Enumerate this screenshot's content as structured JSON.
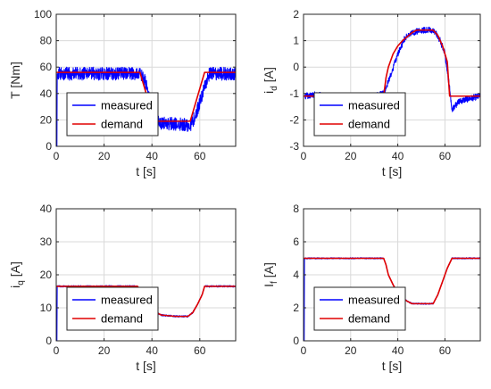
{
  "colors": {
    "measured": "#0000ff",
    "demand": "#e00000",
    "grid": "#d9d9d9",
    "axis": "#262626"
  },
  "chart_data": [
    {
      "type": "line",
      "xlabel": "t [s]",
      "ylabel": {
        "base": "T [Nm]"
      },
      "xlim": [
        0,
        75
      ],
      "ylim": [
        0,
        100
      ],
      "xticks": [
        0,
        20,
        40,
        60
      ],
      "yticks": [
        0,
        20,
        40,
        60,
        80,
        100
      ],
      "grid": true,
      "legend_placement": "bottom-left",
      "series": [
        {
          "name": "measured",
          "noise": 5,
          "x": [
            0,
            0.3,
            0.4,
            35,
            37,
            40,
            42,
            56,
            58,
            62,
            64,
            75
          ],
          "y": [
            0,
            0,
            55,
            55,
            50,
            30,
            18,
            16,
            22,
            45,
            55,
            55
          ]
        },
        {
          "name": "demand",
          "x": [
            0,
            35,
            41,
            56,
            62,
            75
          ],
          "y": [
            56,
            56,
            19,
            19,
            56,
            56
          ]
        }
      ]
    },
    {
      "type": "line",
      "xlabel": "t [s]",
      "ylabel": {
        "base": "i",
        "sub": "d",
        "unit": " [A]"
      },
      "xlim": [
        0,
        75
      ],
      "ylim": [
        -3,
        2
      ],
      "xticks": [
        0,
        20,
        40,
        60
      ],
      "yticks": [
        -3,
        -2,
        -1,
        0,
        1,
        2
      ],
      "grid": true,
      "legend_placement": "bottom-left",
      "series": [
        {
          "name": "measured",
          "noise": 0.12,
          "x": [
            0,
            5,
            10,
            20,
            30,
            34,
            37,
            40,
            43,
            46,
            50,
            54,
            56,
            58,
            60,
            62,
            63,
            66,
            70,
            75
          ],
          "y": [
            -1.1,
            -1.05,
            -1.1,
            -1.1,
            -1.1,
            -1.0,
            -0.3,
            0.5,
            1.1,
            1.3,
            1.4,
            1.4,
            1.3,
            1.0,
            0.5,
            -0.8,
            -1.6,
            -1.3,
            -1.2,
            -1.1
          ]
        },
        {
          "name": "demand",
          "x": [
            0,
            34,
            35,
            36,
            38,
            40,
            42,
            44,
            46,
            48,
            55,
            57,
            59,
            61,
            62,
            75
          ],
          "y": [
            -1.1,
            -1.1,
            -0.4,
            0,
            0.5,
            0.8,
            1.0,
            1.15,
            1.3,
            1.4,
            1.4,
            1.2,
            0.8,
            0.2,
            -1.1,
            -1.1
          ]
        }
      ]
    },
    {
      "type": "line",
      "xlabel": "t [s]",
      "ylabel": {
        "base": "i",
        "sub": "q",
        "unit": " [A]"
      },
      "xlim": [
        0,
        75
      ],
      "ylim": [
        0,
        40
      ],
      "xticks": [
        0,
        20,
        40,
        60
      ],
      "yticks": [
        0,
        10,
        20,
        30,
        40
      ],
      "grid": true,
      "legend_placement": "bottom-left",
      "series": [
        {
          "name": "measured",
          "noise": 0.25,
          "x": [
            0,
            0.3,
            0.4,
            34,
            35,
            36,
            38,
            40,
            42,
            44,
            50,
            55,
            57,
            59,
            61,
            62,
            75
          ],
          "y": [
            0,
            0,
            16.5,
            16.5,
            15,
            13.5,
            11.5,
            10,
            8.5,
            7.8,
            7.4,
            7.4,
            8.5,
            11,
            14,
            16.5,
            16.5
          ]
        },
        {
          "name": "demand",
          "x": [
            0,
            34,
            35,
            36,
            38,
            40,
            42,
            44,
            50,
            55,
            57,
            59,
            61,
            62,
            75
          ],
          "y": [
            16.5,
            16.5,
            15.5,
            13.5,
            11.5,
            10,
            8.5,
            7.8,
            7.4,
            7.4,
            8.5,
            11,
            14,
            16.5,
            16.5
          ]
        }
      ]
    },
    {
      "type": "line",
      "xlabel": "t [s]",
      "ylabel": {
        "base": "I",
        "sub": "f",
        "unit": " [A]"
      },
      "xlim": [
        0,
        75
      ],
      "ylim": [
        0,
        8
      ],
      "xticks": [
        0,
        20,
        40,
        60
      ],
      "yticks": [
        0,
        2,
        4,
        6,
        8
      ],
      "grid": true,
      "legend_placement": "bottom-left",
      "series": [
        {
          "name": "measured",
          "noise": 0.04,
          "x": [
            0,
            0.3,
            0.4,
            34,
            35,
            36,
            38,
            40,
            42,
            44,
            46,
            55,
            57,
            59,
            61,
            63,
            75
          ],
          "y": [
            0,
            0,
            5.0,
            5.0,
            4.6,
            4.0,
            3.4,
            2.9,
            2.6,
            2.4,
            2.25,
            2.25,
            2.8,
            3.6,
            4.4,
            5.0,
            5.0
          ]
        },
        {
          "name": "demand",
          "x": [
            0,
            34,
            35,
            36,
            38,
            40,
            42,
            44,
            46,
            55,
            57,
            59,
            61,
            63,
            75
          ],
          "y": [
            5.0,
            5.0,
            4.6,
            4.0,
            3.4,
            2.9,
            2.6,
            2.4,
            2.25,
            2.25,
            2.8,
            3.6,
            4.4,
            5.0,
            5.0
          ]
        }
      ]
    }
  ]
}
